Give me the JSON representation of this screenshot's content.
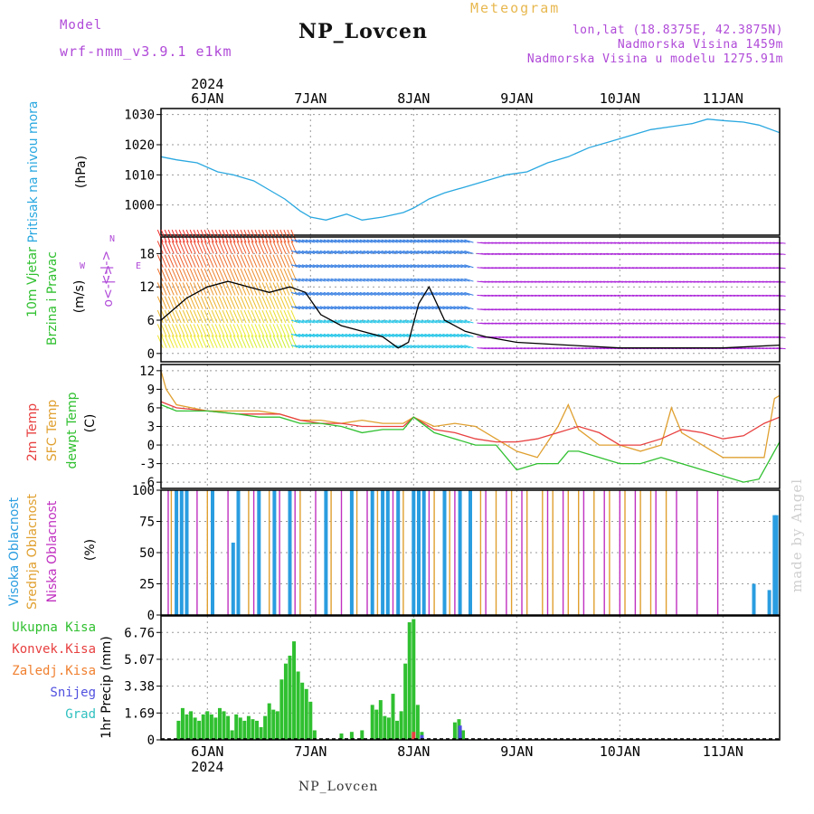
{
  "header": {
    "model_label": "Model",
    "model_version": "wrf-nmm_v3.9.1 e1km",
    "station": "NP_Lovcen",
    "product": "Meteogram",
    "lonlat": "lon,lat (18.8375E, 42.3875N)",
    "elevation": "Nadmorska Visina 1459m",
    "model_elevation": "Nadmorska Visina u modelu 1275.91m"
  },
  "footer": {
    "station": "NP_Lovcen",
    "watermark": "made by Angel"
  },
  "time_axis": {
    "year": "2024",
    "day_labels": [
      "6JAN",
      "7JAN",
      "8JAN",
      "9JAN",
      "10JAN",
      "11JAN"
    ],
    "start_day": 5.55,
    "end_day": 11.55
  },
  "colors": {
    "pressure": "#2aa8e0",
    "temp2m": "#e84040",
    "sfc_temp": "#e0a030",
    "dewpt": "#30c030",
    "high_cloud": "#2a9de0",
    "mid_cloud": "#e0a030",
    "low_cloud": "#c030c0",
    "total_precip": "#30c030",
    "conv_precip": "#e84040",
    "frz_precip": "#f08030",
    "snow": "#5050e0",
    "hail": "#30c0c0"
  },
  "chart_data": [
    {
      "type": "line",
      "panel": "pressure",
      "ylabel": [
        "Pritisak na nivou mora",
        "(hPa)"
      ],
      "yticks": [
        1000,
        1010,
        1020,
        1030
      ],
      "ylim": [
        990,
        1032
      ],
      "grid": true,
      "series": [
        {
          "name": "Pritisak na nivou mora",
          "x": [
            5.55,
            5.7,
            5.9,
            6.1,
            6.25,
            6.45,
            6.6,
            6.75,
            6.9,
            7.0,
            7.15,
            7.35,
            7.5,
            7.7,
            7.9,
            8.0,
            8.15,
            8.3,
            8.5,
            8.7,
            8.9,
            9.1,
            9.3,
            9.5,
            9.7,
            9.9,
            10.1,
            10.3,
            10.5,
            10.7,
            10.85,
            11.0,
            11.2,
            11.35,
            11.55
          ],
          "y": [
            1016,
            1015,
            1014,
            1011,
            1010,
            1008,
            1005,
            1002,
            998,
            996,
            995,
            997,
            995,
            996,
            997.5,
            999,
            1002,
            1004,
            1006,
            1008,
            1010,
            1011,
            1014,
            1016,
            1019,
            1021,
            1023,
            1025,
            1026,
            1027,
            1028.5,
            1028,
            1027.5,
            1026.5,
            1024
          ]
        }
      ]
    },
    {
      "type": "line",
      "panel": "wind",
      "ylabel": [
        "10m Vjetar",
        "Brzina i Pravac",
        "(m/s)"
      ],
      "direction_legend": [
        "N",
        "W",
        "E",
        "<-|->",
        "o<-|->"
      ],
      "yticks": [
        0,
        6,
        12,
        18
      ],
      "ylim": [
        -1.5,
        21
      ],
      "grid": true,
      "series": [
        {
          "name": "speed",
          "x": [
            5.55,
            5.8,
            6.0,
            6.2,
            6.4,
            6.6,
            6.8,
            6.95,
            7.1,
            7.3,
            7.5,
            7.7,
            7.85,
            7.95,
            8.05,
            8.15,
            8.3,
            8.5,
            8.7,
            9.0,
            9.5,
            10.0,
            10.5,
            11.0,
            11.55
          ],
          "y": [
            6,
            10,
            12,
            13,
            12,
            11,
            12,
            11,
            7,
            5,
            4,
            3,
            1,
            2,
            9,
            12,
            6,
            4,
            3,
            2,
            1.5,
            1,
            1,
            1,
            1.5
          ]
        }
      ]
    },
    {
      "type": "line",
      "panel": "temperature",
      "ylabel": [
        "2m Temp",
        "SFC Temp",
        "dewpt Temp",
        "(C)"
      ],
      "yticks": [
        -6,
        -3,
        0,
        3,
        6,
        9,
        12
      ],
      "ylim": [
        -7,
        13
      ],
      "grid": true,
      "series": [
        {
          "name": "2m Temp",
          "x": [
            5.55,
            5.7,
            6.0,
            6.3,
            6.5,
            6.7,
            6.9,
            7.1,
            7.3,
            7.5,
            7.7,
            7.9,
            8.0,
            8.2,
            8.4,
            8.6,
            8.8,
            9.0,
            9.2,
            9.4,
            9.6,
            9.8,
            10.0,
            10.2,
            10.4,
            10.6,
            10.8,
            11.0,
            11.2,
            11.4,
            11.55
          ],
          "y": [
            7,
            6,
            5.5,
            5,
            5,
            5,
            4,
            3.5,
            3.5,
            3,
            3,
            3,
            4.5,
            2.5,
            2,
            1,
            0.5,
            0.5,
            1,
            2,
            3,
            2,
            0,
            0,
            1,
            2.5,
            2,
            1,
            1.5,
            3.5,
            4.5
          ]
        },
        {
          "name": "SFC Temp",
          "x": [
            5.55,
            5.6,
            5.7,
            6.0,
            6.3,
            6.5,
            6.7,
            6.9,
            7.1,
            7.3,
            7.5,
            7.7,
            7.9,
            8.0,
            8.2,
            8.4,
            8.6,
            8.8,
            9.0,
            9.2,
            9.4,
            9.5,
            9.6,
            9.8,
            10.0,
            10.2,
            10.4,
            10.5,
            10.6,
            10.8,
            11.0,
            11.2,
            11.4,
            11.5,
            11.55
          ],
          "y": [
            12,
            9,
            6.5,
            5.5,
            5.5,
            5.5,
            5,
            4,
            4,
            3.5,
            4,
            3.5,
            3.5,
            4.5,
            3,
            3.5,
            3,
            1,
            -1,
            -2,
            3,
            6.5,
            2.5,
            0,
            0,
            -1,
            0,
            6,
            2,
            0,
            -2,
            -2,
            -2,
            7.5,
            8
          ]
        },
        {
          "name": "dewpt Temp",
          "x": [
            5.55,
            5.7,
            6.0,
            6.3,
            6.5,
            6.7,
            6.9,
            7.1,
            7.3,
            7.5,
            7.7,
            7.9,
            8.0,
            8.2,
            8.4,
            8.6,
            8.8,
            9.0,
            9.2,
            9.4,
            9.5,
            9.6,
            9.8,
            10.0,
            10.2,
            10.4,
            10.6,
            10.8,
            11.0,
            11.2,
            11.35,
            11.55
          ],
          "y": [
            6.5,
            5.5,
            5.5,
            5,
            4.5,
            4.5,
            3.5,
            3.5,
            3,
            2,
            2.5,
            2.5,
            4.5,
            2,
            1,
            0,
            0,
            -4,
            -3,
            -3,
            -1,
            -1,
            -2,
            -3,
            -3,
            -2,
            -3,
            -4,
            -5,
            -6,
            -5.5,
            0.5
          ]
        }
      ]
    },
    {
      "type": "bar",
      "panel": "cloud",
      "ylabel": [
        "Visoka Oblacnost",
        "Srednja Oblacnost",
        "Niska Oblacnost",
        "(%)"
      ],
      "yticks": [
        0,
        25,
        50,
        75,
        100
      ],
      "ylim": [
        0,
        100
      ],
      "grid": true,
      "series": [
        {
          "name": "Visoka Oblacnost",
          "x": [
            5.7,
            5.75,
            5.8,
            6.05,
            6.25,
            6.3,
            6.5,
            6.65,
            6.8,
            7.15,
            7.4,
            7.6,
            7.7,
            7.75,
            7.85,
            8.0,
            8.05,
            8.1,
            8.3,
            8.45,
            8.55,
            11.3,
            11.45,
            11.5,
            11.52
          ],
          "y": [
            100,
            100,
            100,
            100,
            58,
            100,
            100,
            100,
            100,
            100,
            100,
            100,
            100,
            100,
            100,
            100,
            100,
            100,
            100,
            100,
            100,
            25,
            20,
            80,
            80
          ]
        },
        {
          "name": "Srednja Oblacnost",
          "x": [
            5.65,
            6.0,
            6.4,
            6.6,
            6.9,
            7.2,
            7.45,
            7.65,
            7.9,
            8.2,
            8.35,
            8.65,
            8.8,
            8.95,
            9.1,
            9.25,
            9.35,
            9.5,
            9.6,
            9.75,
            9.9,
            10.05,
            10.2,
            10.3,
            10.45
          ],
          "y": [
            100,
            100,
            100,
            100,
            100,
            100,
            100,
            100,
            100,
            100,
            100,
            100,
            100,
            100,
            100,
            100,
            100,
            100,
            100,
            100,
            100,
            100,
            100,
            100,
            100
          ]
        },
        {
          "name": "Niska Oblacnost",
          "x": [
            5.62,
            5.9,
            6.2,
            6.45,
            6.7,
            6.85,
            7.05,
            7.3,
            7.55,
            7.8,
            8.15,
            8.4,
            8.7,
            8.9,
            9.05,
            9.3,
            9.45,
            9.65,
            9.85,
            10.0,
            10.15,
            10.35,
            10.55,
            10.75,
            10.95
          ],
          "y": [
            100,
            100,
            100,
            100,
            100,
            100,
            100,
            100,
            100,
            100,
            100,
            100,
            100,
            100,
            100,
            100,
            100,
            100,
            100,
            100,
            100,
            100,
            100,
            100,
            100
          ]
        }
      ]
    },
    {
      "type": "bar",
      "panel": "precip",
      "ylabel": [
        "1hr Precip (mm)"
      ],
      "legend": [
        "Ukupna Kisa",
        "Konvek.Kisa",
        "Zaledj.Kisa",
        "Snijeg",
        "Grad"
      ],
      "yticks": [
        0,
        1.69,
        3.38,
        5.07,
        6.76
      ],
      "ylim": [
        0,
        7.8
      ],
      "grid": true,
      "series": [
        {
          "name": "Ukupna Kisa",
          "x": [
            5.72,
            5.76,
            5.8,
            5.84,
            5.88,
            5.92,
            5.96,
            6.0,
            6.04,
            6.08,
            6.12,
            6.16,
            6.2,
            6.24,
            6.28,
            6.32,
            6.36,
            6.4,
            6.44,
            6.48,
            6.52,
            6.56,
            6.6,
            6.64,
            6.68,
            6.72,
            6.76,
            6.8,
            6.84,
            6.88,
            6.92,
            6.96,
            7.0,
            7.04,
            7.3,
            7.4,
            7.5,
            7.6,
            7.64,
            7.68,
            7.72,
            7.76,
            7.8,
            7.84,
            7.88,
            7.92,
            7.96,
            8.0,
            8.04,
            8.08,
            8.4,
            8.44,
            8.48
          ],
          "y": [
            1.2,
            2,
            1.6,
            1.8,
            1.4,
            1.2,
            1.6,
            1.8,
            1.6,
            1.4,
            2,
            1.8,
            1.5,
            0.6,
            1.6,
            1.4,
            1.2,
            1.5,
            1.3,
            1.2,
            0.8,
            1.5,
            2.3,
            1.9,
            1.8,
            3.8,
            4.8,
            5.3,
            6.2,
            4.3,
            3.6,
            3.2,
            2.4,
            0.6,
            0.4,
            0.5,
            0.6,
            2.2,
            1.9,
            2.5,
            1.5,
            1.4,
            2.9,
            1.2,
            1.8,
            4.8,
            7.4,
            7.6,
            2.2,
            0.5,
            1.1,
            1.3,
            0.6
          ]
        },
        {
          "name": "Konvek.Kisa",
          "x": [
            8.0
          ],
          "y": [
            0.5
          ]
        },
        {
          "name": "Snijeg",
          "x": [
            8.08,
            8.45
          ],
          "y": [
            0.3,
            0.9
          ]
        }
      ]
    }
  ]
}
